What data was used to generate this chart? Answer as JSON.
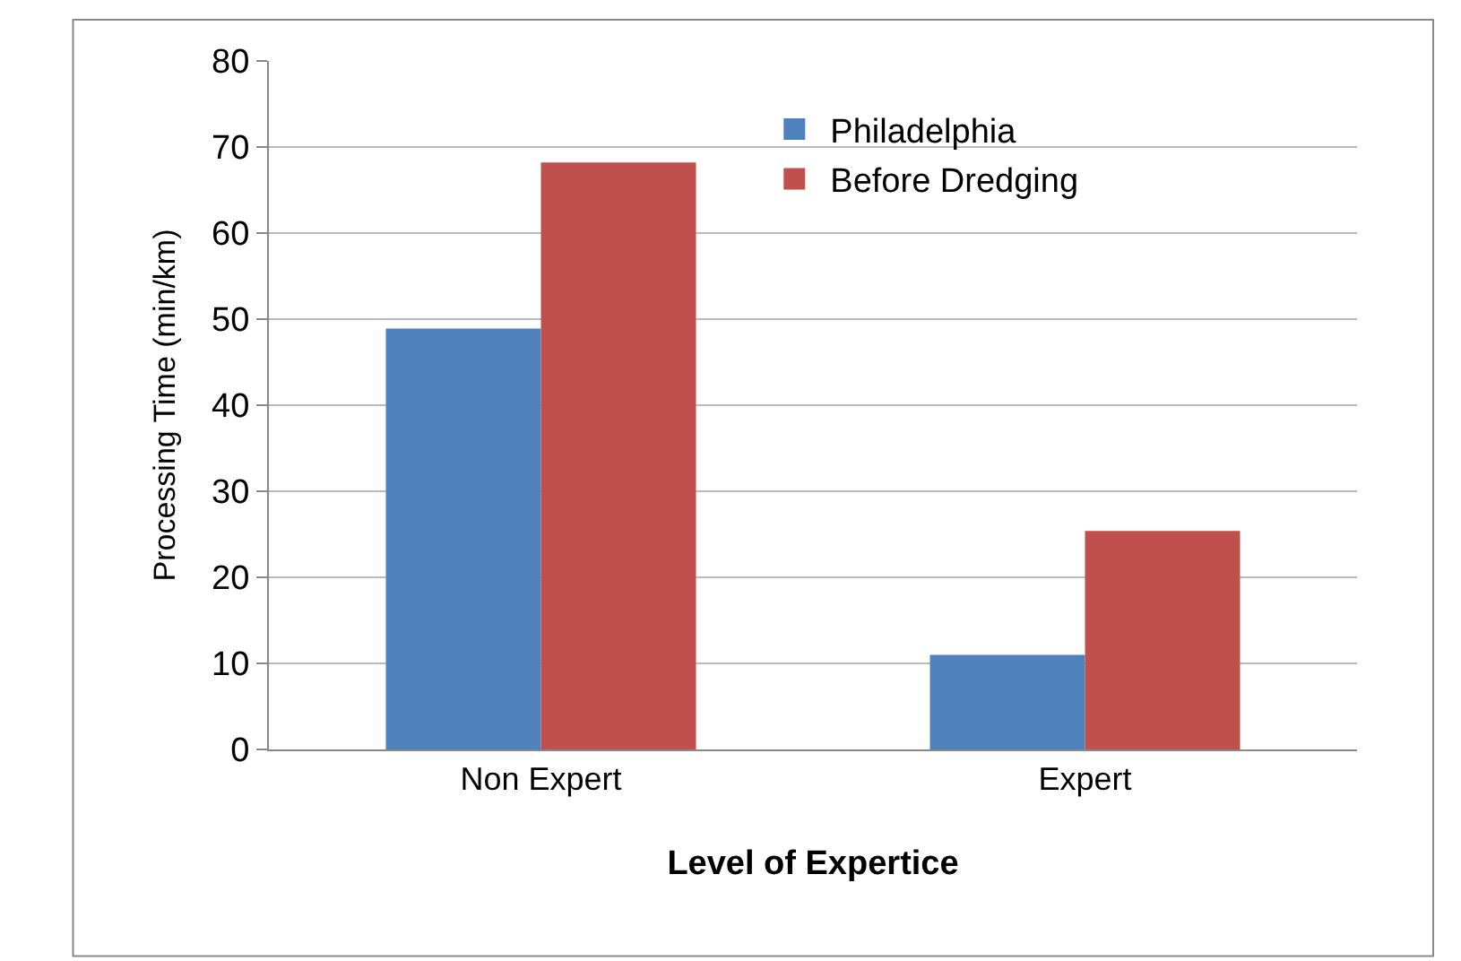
{
  "chart_data": {
    "type": "bar",
    "xlabel": "Level of Expertice",
    "ylabel": "Processing Time (min/km)",
    "categories": [
      "Non Expert",
      "Expert"
    ],
    "series": [
      {
        "name": "Philadelphia",
        "color": "#4f81bd",
        "values": [
          48.9,
          11.0
        ]
      },
      {
        "name": "Before Dredging",
        "color": "#c0504d",
        "values": [
          68.2,
          25.4
        ]
      }
    ],
    "ylim": [
      0,
      80
    ],
    "yticks": [
      0,
      10,
      20,
      30,
      40,
      50,
      60,
      70,
      80
    ],
    "grid": "y",
    "legend": "top"
  }
}
